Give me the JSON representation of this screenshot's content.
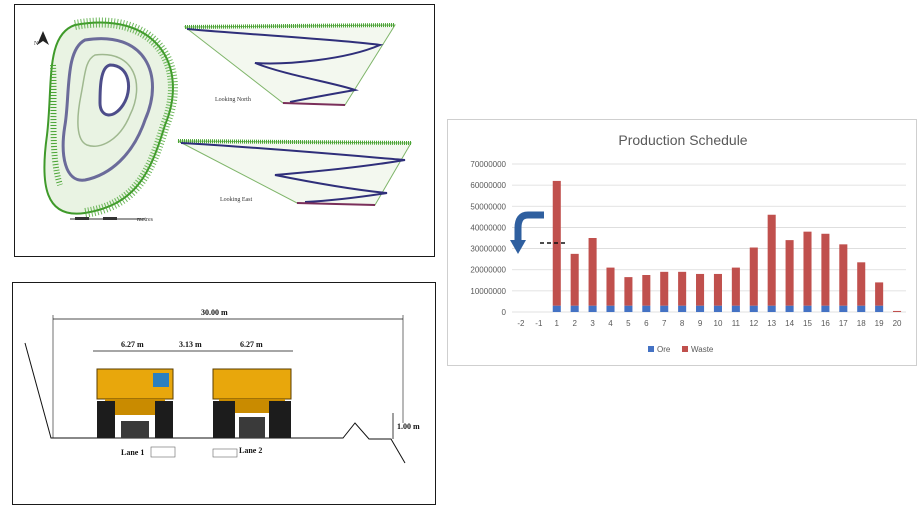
{
  "pit_views": {
    "north_arrow": "N",
    "looking_north": "Looking North",
    "looking_east": "Looking East",
    "scale_text": "metres"
  },
  "truck_lanes": {
    "total_width": "30.00 m",
    "truck_width_1": "6.27 m",
    "gap_width": "3.13 m",
    "truck_width_2": "6.27 m",
    "berm_height": "1.00 m",
    "lane_1": "Lane 1",
    "lane_2": "Lane 2",
    "colors": {
      "truck_yellow": "#e8a70c",
      "tire": "#1c1c1c"
    }
  },
  "chart_data": {
    "type": "bar",
    "stacked": true,
    "title": "Production Schedule",
    "xlabel": "",
    "ylabel": "",
    "categories": [
      "-2",
      "-1",
      "1",
      "2",
      "3",
      "4",
      "5",
      "6",
      "7",
      "8",
      "9",
      "10",
      "11",
      "12",
      "13",
      "14",
      "15",
      "16",
      "17",
      "18",
      "19",
      "20"
    ],
    "series": [
      {
        "name": "Ore",
        "color": "#4472c4",
        "values": [
          0,
          0,
          3000000,
          3000000,
          3000000,
          3000000,
          3000000,
          3000000,
          3000000,
          3000000,
          3000000,
          3000000,
          3000000,
          3000000,
          3000000,
          3000000,
          3000000,
          3000000,
          3000000,
          3000000,
          3000000,
          0
        ]
      },
      {
        "name": "Waste",
        "color": "#c0504d",
        "values": [
          0,
          0,
          59000000,
          24500000,
          32000000,
          18000000,
          13500000,
          14500000,
          16000000,
          16000000,
          15000000,
          15000000,
          18000000,
          27500000,
          43000000,
          31000000,
          35000000,
          34000000,
          29000000,
          20500000,
          11000000,
          500000
        ]
      }
    ],
    "ylim": [
      0,
      70000000
    ],
    "yticks": [
      "70000000",
      "60000000",
      "50000000",
      "40000000",
      "30000000",
      "20000000",
      "10000000",
      "0"
    ],
    "grid": true,
    "legend": "bottom"
  }
}
